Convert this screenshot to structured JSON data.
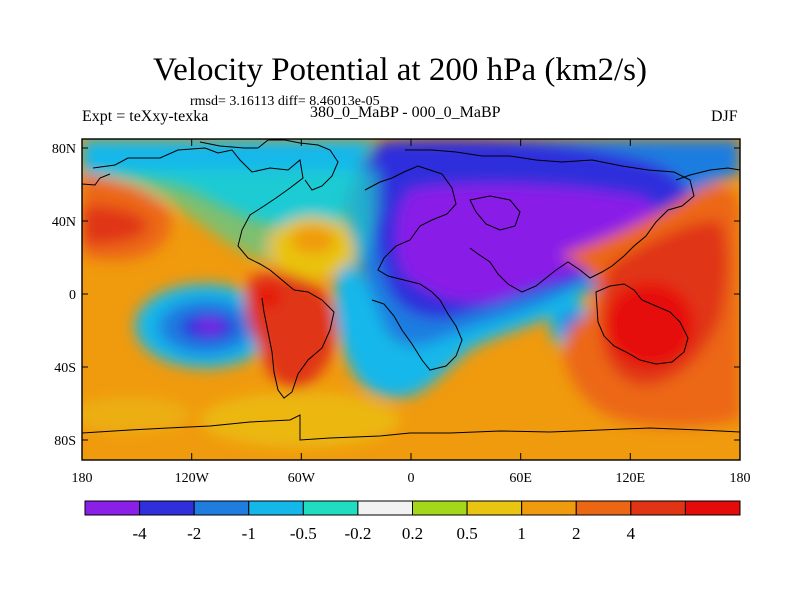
{
  "plot": {
    "title": "Velocity Potential at 200 hPa (km2/s)",
    "stats_text": "rmsd= 3.16113 diff= 8.46013e-05",
    "left_label": "Expt = teXxy-texka",
    "center_label": "380_0_MaBP - 000_0_MaBP",
    "right_label": "DJF"
  },
  "axes": {
    "y_ticks": [
      "80N",
      "40N",
      "0",
      "40S",
      "80S"
    ],
    "x_ticks": [
      "180",
      "120W",
      "60W",
      "0",
      "60E",
      "120E",
      "180"
    ]
  },
  "colorbar": {
    "colors": [
      "#8a1fe8",
      "#2f2fdc",
      "#1f7de0",
      "#13b7ea",
      "#22dcc0",
      "#f2f2f2",
      "#a4d61a",
      "#e9c410",
      "#f09a0e",
      "#ec6713",
      "#e03414",
      "#e60b0b"
    ],
    "labels": [
      "-4",
      "-2",
      "-1",
      "-0.5",
      "-0.2",
      "0.2",
      "0.5",
      "1",
      "2",
      "4"
    ]
  }
}
